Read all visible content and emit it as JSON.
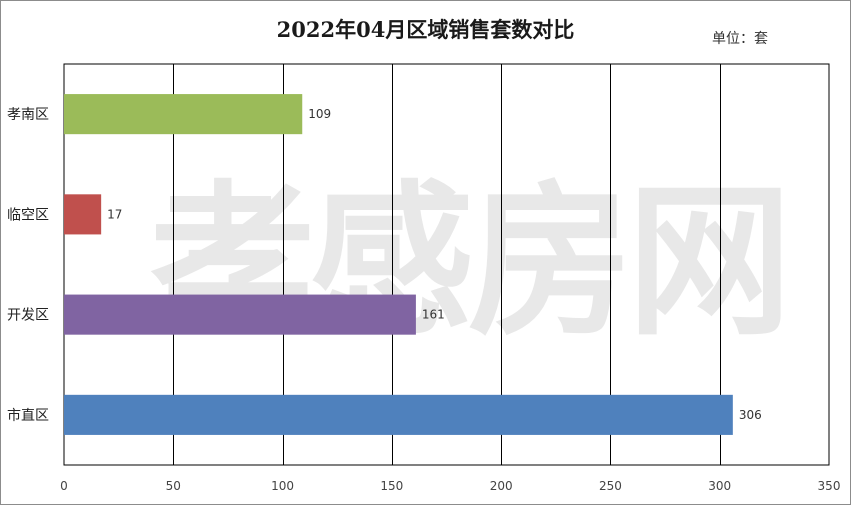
{
  "chart_data": {
    "type": "bar",
    "orientation": "horizontal",
    "title": "2022年04月区域销售套数对比",
    "unit_label": "单位：套",
    "categories": [
      "孝南区",
      "临空区",
      "开发区",
      "市直区"
    ],
    "values": [
      109,
      17,
      161,
      306
    ],
    "bar_colors": [
      "#9bbb59",
      "#c0504d",
      "#8064a2",
      "#4f81bd"
    ],
    "xlim": [
      0,
      350
    ],
    "xticks": [
      0,
      50,
      100,
      150,
      200,
      250,
      300,
      350
    ],
    "grid": true,
    "legend": "none"
  },
  "watermark": "孝感房网"
}
